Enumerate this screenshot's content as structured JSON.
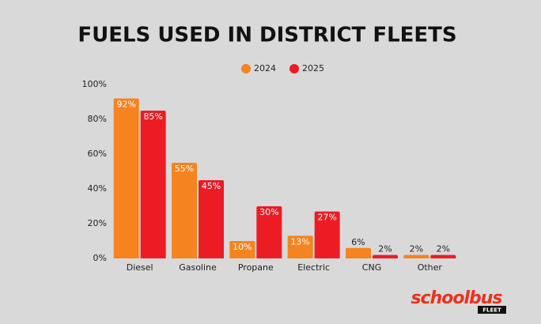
{
  "chart_data": {
    "type": "bar",
    "title": "FUELS USED IN DISTRICT FLEETS",
    "categories": [
      "Diesel",
      "Gasoline",
      "Propane",
      "Electric",
      "CNG",
      "Other"
    ],
    "series": [
      {
        "name": "2024",
        "color": "#f5831f",
        "values": [
          92,
          55,
          10,
          13,
          6,
          2
        ],
        "value_labels": [
          "92%",
          "55%",
          "10%",
          "13%",
          "6%",
          "2%"
        ]
      },
      {
        "name": "2025",
        "color": "#ec1c24",
        "values": [
          85,
          45,
          30,
          27,
          2,
          2
        ],
        "value_labels": [
          "85%",
          "45%",
          "30%",
          "27%",
          "2%",
          "2%"
        ]
      }
    ],
    "ylim": [
      0,
      100
    ],
    "yticks": [
      {
        "value": 0,
        "label": "0%"
      },
      {
        "value": 20,
        "label": "20%"
      },
      {
        "value": 40,
        "label": "40%"
      },
      {
        "value": 60,
        "label": "60%"
      },
      {
        "value": 80,
        "label": "80%"
      },
      {
        "value": 100,
        "label": "100%"
      }
    ],
    "grid": false
  },
  "logo": {
    "text": "schoolbus",
    "sub": "FLEET"
  }
}
